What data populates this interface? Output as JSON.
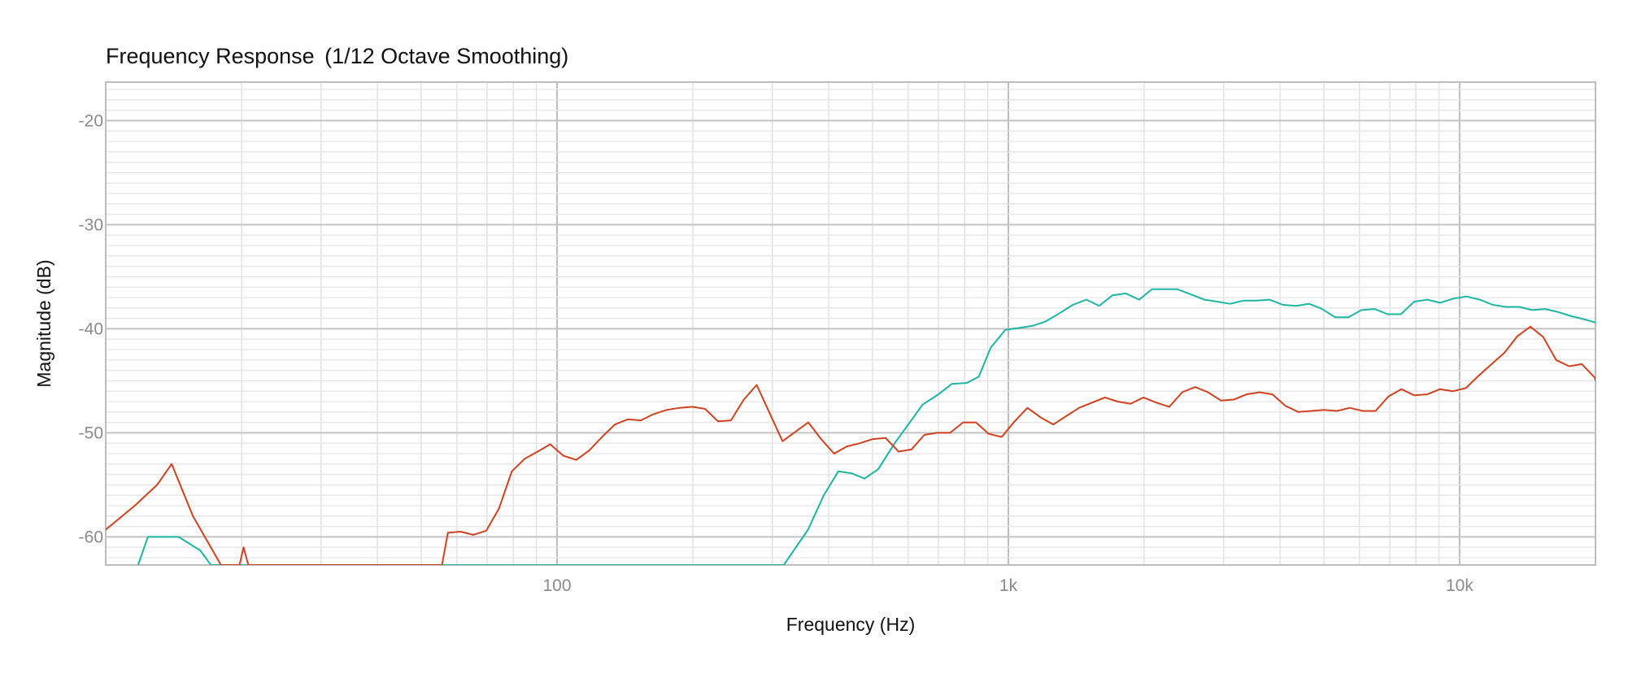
{
  "chart_data": {
    "type": "line",
    "title": "Frequency Response",
    "subtitle": "(1/12 Octave Smoothing)",
    "xlabel": "Frequency (Hz)",
    "ylabel": "Magnitude (dB)",
    "x_scale": "log",
    "xlim": [
      10,
      20000
    ],
    "ylim": [
      -62.7,
      -16.3
    ],
    "grid": true,
    "legend": "none",
    "x_ticks": [
      {
        "value": 100,
        "label": "100"
      },
      {
        "value": 1000,
        "label": "1k"
      },
      {
        "value": 10000,
        "label": "10k"
      }
    ],
    "y_ticks": [
      {
        "value": -20,
        "label": "-20"
      },
      {
        "value": -30,
        "label": "-30"
      },
      {
        "value": -40,
        "label": "-40"
      },
      {
        "value": -50,
        "label": "-50"
      },
      {
        "value": -60,
        "label": "-60"
      }
    ],
    "series": [
      {
        "color": "#1fb5a3",
        "points": [
          [
            11.8,
            -62.7
          ],
          [
            12.4,
            -60.0
          ],
          [
            13.7,
            -60.0
          ],
          [
            14.5,
            -60.0
          ],
          [
            16.2,
            -61.3
          ],
          [
            17.1,
            -62.7
          ],
          [
            318,
            -62.7
          ],
          [
            360,
            -59.3
          ],
          [
            390,
            -56.0
          ],
          [
            420,
            -53.7
          ],
          [
            450,
            -53.9
          ],
          [
            480,
            -54.4
          ],
          [
            515,
            -53.5
          ],
          [
            560,
            -51.0
          ],
          [
            605,
            -49.0
          ],
          [
            645,
            -47.3
          ],
          [
            700,
            -46.3
          ],
          [
            750,
            -45.3
          ],
          [
            810,
            -45.2
          ],
          [
            860,
            -44.6
          ],
          [
            915,
            -41.8
          ],
          [
            985,
            -40.1
          ],
          [
            1065,
            -39.9
          ],
          [
            1135,
            -39.7
          ],
          [
            1210,
            -39.3
          ],
          [
            1300,
            -38.5
          ],
          [
            1390,
            -37.7
          ],
          [
            1490,
            -37.2
          ],
          [
            1590,
            -37.8
          ],
          [
            1700,
            -36.8
          ],
          [
            1820,
            -36.6
          ],
          [
            1950,
            -37.2
          ],
          [
            2080,
            -36.2
          ],
          [
            2230,
            -36.2
          ],
          [
            2370,
            -36.2
          ],
          [
            2540,
            -36.7
          ],
          [
            2720,
            -37.2
          ],
          [
            2910,
            -37.4
          ],
          [
            3100,
            -37.6
          ],
          [
            3320,
            -37.3
          ],
          [
            3550,
            -37.3
          ],
          [
            3790,
            -37.2
          ],
          [
            4060,
            -37.7
          ],
          [
            4340,
            -37.8
          ],
          [
            4640,
            -37.6
          ],
          [
            4960,
            -38.1
          ],
          [
            5300,
            -38.9
          ],
          [
            5670,
            -38.9
          ],
          [
            6060,
            -38.2
          ],
          [
            6480,
            -38.1
          ],
          [
            6930,
            -38.6
          ],
          [
            7410,
            -38.6
          ],
          [
            7930,
            -37.4
          ],
          [
            8480,
            -37.2
          ],
          [
            9060,
            -37.5
          ],
          [
            9690,
            -37.1
          ],
          [
            10360,
            -36.9
          ],
          [
            11080,
            -37.2
          ],
          [
            11850,
            -37.7
          ],
          [
            12670,
            -37.9
          ],
          [
            13540,
            -37.9
          ],
          [
            14480,
            -38.2
          ],
          [
            15480,
            -38.1
          ],
          [
            16550,
            -38.4
          ],
          [
            17700,
            -38.8
          ],
          [
            18930,
            -39.1
          ],
          [
            20000,
            -39.4
          ]
        ]
      },
      {
        "color": "#d0421f",
        "points": [
          [
            10.0,
            -59.3
          ],
          [
            11.6,
            -57.0
          ],
          [
            13.0,
            -55.0
          ],
          [
            14.0,
            -53.0
          ],
          [
            15.6,
            -58.0
          ],
          [
            17.1,
            -61.0
          ],
          [
            18.0,
            -62.7
          ],
          [
            19.8,
            -62.7
          ],
          [
            20.2,
            -61.0
          ],
          [
            20.7,
            -62.7
          ],
          [
            55.6,
            -62.7
          ],
          [
            57.3,
            -59.6
          ],
          [
            61.2,
            -59.5
          ],
          [
            65.2,
            -59.8
          ],
          [
            69.7,
            -59.4
          ],
          [
            74.3,
            -57.3
          ],
          [
            79.4,
            -53.7
          ],
          [
            84.8,
            -52.5
          ],
          [
            90.6,
            -51.8
          ],
          [
            96.6,
            -51.1
          ],
          [
            103.3,
            -52.2
          ],
          [
            110.3,
            -52.6
          ],
          [
            117.8,
            -51.7
          ],
          [
            125.8,
            -50.4
          ],
          [
            134.4,
            -49.2
          ],
          [
            143.5,
            -48.7
          ],
          [
            153.3,
            -48.8
          ],
          [
            163.7,
            -48.2
          ],
          [
            174.8,
            -47.8
          ],
          [
            186.7,
            -47.6
          ],
          [
            199.3,
            -47.5
          ],
          [
            212.9,
            -47.7
          ],
          [
            227.4,
            -48.9
          ],
          [
            242.9,
            -48.8
          ],
          [
            259.4,
            -46.8
          ],
          [
            277.0,
            -45.4
          ],
          [
            295.8,
            -48.1
          ],
          [
            316.0,
            -50.8
          ],
          [
            337.5,
            -49.9
          ],
          [
            360.4,
            -49.0
          ],
          [
            384.9,
            -50.6
          ],
          [
            411.1,
            -52.0
          ],
          [
            439.0,
            -51.3
          ],
          [
            468.9,
            -51.0
          ],
          [
            500.8,
            -50.6
          ],
          [
            534.8,
            -50.5
          ],
          [
            571.2,
            -51.8
          ],
          [
            610.0,
            -51.6
          ],
          [
            651.5,
            -50.2
          ],
          [
            695.8,
            -50.0
          ],
          [
            743.2,
            -50.0
          ],
          [
            793.7,
            -49.0
          ],
          [
            847.7,
            -49.0
          ],
          [
            905.3,
            -50.1
          ],
          [
            966.9,
            -50.4
          ],
          [
            1032.6,
            -48.9
          ],
          [
            1102.8,
            -47.6
          ],
          [
            1177.8,
            -48.5
          ],
          [
            1257.9,
            -49.2
          ],
          [
            1343.4,
            -48.4
          ],
          [
            1434.7,
            -47.6
          ],
          [
            1532.3,
            -47.1
          ],
          [
            1636.5,
            -46.6
          ],
          [
            1747.8,
            -47.0
          ],
          [
            1866.6,
            -47.2
          ],
          [
            1993.5,
            -46.6
          ],
          [
            2129.1,
            -47.1
          ],
          [
            2273.8,
            -47.5
          ],
          [
            2428.4,
            -46.1
          ],
          [
            2593.6,
            -45.6
          ],
          [
            2769.9,
            -46.1
          ],
          [
            2958.2,
            -46.9
          ],
          [
            3159.4,
            -46.8
          ],
          [
            3374.2,
            -46.3
          ],
          [
            3603.6,
            -46.1
          ],
          [
            3848.7,
            -46.3
          ],
          [
            4110.4,
            -47.4
          ],
          [
            4389.8,
            -48.0
          ],
          [
            4688.3,
            -47.9
          ],
          [
            5007.1,
            -47.8
          ],
          [
            5347.6,
            -47.9
          ],
          [
            5711.2,
            -47.6
          ],
          [
            6099.6,
            -47.9
          ],
          [
            6514.3,
            -47.9
          ],
          [
            6957.3,
            -46.5
          ],
          [
            7430.3,
            -45.8
          ],
          [
            7935.6,
            -46.4
          ],
          [
            8475.1,
            -46.3
          ],
          [
            9051.4,
            -45.8
          ],
          [
            9666.9,
            -46.0
          ],
          [
            10324.2,
            -45.7
          ],
          [
            11026.3,
            -44.5
          ],
          [
            11776.0,
            -43.4
          ],
          [
            12576.8,
            -42.3
          ],
          [
            13432.0,
            -40.7
          ],
          [
            14345.3,
            -39.8
          ],
          [
            15320.7,
            -40.8
          ],
          [
            16362.6,
            -43.0
          ],
          [
            17475.2,
            -43.6
          ],
          [
            18663.5,
            -43.4
          ],
          [
            19932.7,
            -44.7
          ],
          [
            20000,
            -45.0
          ]
        ]
      }
    ]
  }
}
